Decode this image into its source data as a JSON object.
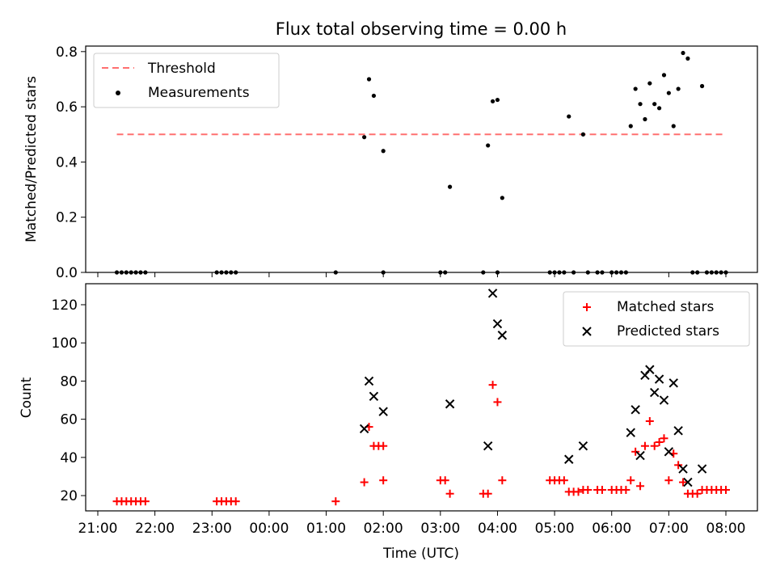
{
  "chart_data": [
    {
      "type": "scatter",
      "title": "Flux total observing time = 0.00 h",
      "xlabel": "",
      "ylabel": "Matched/Predicted stars",
      "xlim": [
        "21:00",
        "08:00"
      ],
      "ylim": [
        0,
        0.82
      ],
      "yticks": [
        "0.0",
        "0.2",
        "0.4",
        "0.6",
        "0.8"
      ],
      "legend_position": "upper-left",
      "threshold": {
        "name": "Threshold",
        "value": 0.5,
        "x_range": [
          "21:20",
          "08:00"
        ],
        "color": "#ff7070",
        "style": "dashed"
      },
      "series": [
        {
          "name": "Measurements",
          "color": "#000000",
          "marker": "dot",
          "points": [
            [
              "21:20",
              0
            ],
            [
              "21:25",
              0
            ],
            [
              "21:30",
              0
            ],
            [
              "21:35",
              0
            ],
            [
              "21:40",
              0
            ],
            [
              "21:45",
              0
            ],
            [
              "21:50",
              0
            ],
            [
              "23:05",
              0
            ],
            [
              "23:10",
              0
            ],
            [
              "23:15",
              0
            ],
            [
              "23:20",
              0
            ],
            [
              "23:25",
              0
            ],
            [
              "01:10",
              0
            ],
            [
              "01:40",
              0.49
            ],
            [
              "01:45",
              0.7
            ],
            [
              "01:50",
              0.64
            ],
            [
              "02:00",
              0.44
            ],
            [
              "02:00",
              0
            ],
            [
              "03:00",
              0
            ],
            [
              "03:05",
              0
            ],
            [
              "03:10",
              0.31
            ],
            [
              "03:45",
              0
            ],
            [
              "03:50",
              0.46
            ],
            [
              "03:55",
              0.62
            ],
            [
              "04:00",
              0.625
            ],
            [
              "04:00",
              0
            ],
            [
              "04:05",
              0.27
            ],
            [
              "04:55",
              0
            ],
            [
              "05:00",
              0
            ],
            [
              "05:05",
              0
            ],
            [
              "05:10",
              0
            ],
            [
              "05:15",
              0.565
            ],
            [
              "05:20",
              0
            ],
            [
              "05:30",
              0.5
            ],
            [
              "05:35",
              0
            ],
            [
              "05:45",
              0
            ],
            [
              "05:50",
              0
            ],
            [
              "06:00",
              0
            ],
            [
              "06:05",
              0
            ],
            [
              "06:10",
              0
            ],
            [
              "06:15",
              0
            ],
            [
              "06:20",
              0.53
            ],
            [
              "06:25",
              0.665
            ],
            [
              "06:30",
              0.61
            ],
            [
              "06:35",
              0.555
            ],
            [
              "06:40",
              0.685
            ],
            [
              "06:45",
              0.61
            ],
            [
              "06:50",
              0.595
            ],
            [
              "06:55",
              0.715
            ],
            [
              "07:00",
              0.65
            ],
            [
              "07:05",
              0.53
            ],
            [
              "07:10",
              0.665
            ],
            [
              "07:15",
              0.795
            ],
            [
              "07:20",
              0.775
            ],
            [
              "07:25",
              0
            ],
            [
              "07:30",
              0
            ],
            [
              "07:35",
              0.675
            ],
            [
              "07:40",
              0
            ],
            [
              "07:45",
              0
            ],
            [
              "07:50",
              0
            ],
            [
              "07:55",
              0
            ],
            [
              "08:00",
              0
            ]
          ]
        }
      ]
    },
    {
      "type": "scatter",
      "title": "",
      "xlabel": "Time (UTC)",
      "ylabel": "Count",
      "xlim": [
        "21:00",
        "08:00"
      ],
      "xticks": [
        "21:00",
        "22:00",
        "23:00",
        "00:00",
        "01:00",
        "02:00",
        "03:00",
        "04:00",
        "05:00",
        "06:00",
        "07:00",
        "08:00"
      ],
      "ylim": [
        12,
        131
      ],
      "yticks": [
        "20",
        "40",
        "60",
        "80",
        "100",
        "120"
      ],
      "legend_position": "upper-right",
      "series": [
        {
          "name": "Matched stars",
          "color": "#ff0000",
          "marker": "plus",
          "points": [
            [
              "21:20",
              17
            ],
            [
              "21:25",
              17
            ],
            [
              "21:30",
              17
            ],
            [
              "21:35",
              17
            ],
            [
              "21:40",
              17
            ],
            [
              "21:45",
              17
            ],
            [
              "21:50",
              17
            ],
            [
              "23:05",
              17
            ],
            [
              "23:10",
              17
            ],
            [
              "23:15",
              17
            ],
            [
              "23:20",
              17
            ],
            [
              "23:25",
              17
            ],
            [
              "01:10",
              17
            ],
            [
              "01:40",
              27
            ],
            [
              "01:45",
              56
            ],
            [
              "01:50",
              46
            ],
            [
              "01:55",
              46
            ],
            [
              "02:00",
              28
            ],
            [
              "02:00",
              46
            ],
            [
              "03:00",
              28
            ],
            [
              "03:05",
              28
            ],
            [
              "03:10",
              21
            ],
            [
              "03:45",
              21
            ],
            [
              "03:50",
              21
            ],
            [
              "03:55",
              78
            ],
            [
              "04:00",
              69
            ],
            [
              "04:05",
              28
            ],
            [
              "04:55",
              28
            ],
            [
              "05:00",
              28
            ],
            [
              "05:05",
              28
            ],
            [
              "05:10",
              28
            ],
            [
              "05:15",
              22
            ],
            [
              "05:20",
              22
            ],
            [
              "05:25",
              22
            ],
            [
              "05:30",
              23
            ],
            [
              "05:35",
              23
            ],
            [
              "05:45",
              23
            ],
            [
              "05:50",
              23
            ],
            [
              "06:00",
              23
            ],
            [
              "06:05",
              23
            ],
            [
              "06:10",
              23
            ],
            [
              "06:15",
              23
            ],
            [
              "06:20",
              28
            ],
            [
              "06:25",
              43
            ],
            [
              "06:30",
              25
            ],
            [
              "06:35",
              46
            ],
            [
              "06:40",
              59
            ],
            [
              "06:45",
              46
            ],
            [
              "06:50",
              48
            ],
            [
              "06:55",
              50
            ],
            [
              "07:00",
              28
            ],
            [
              "07:05",
              42
            ],
            [
              "07:10",
              36
            ],
            [
              "07:15",
              27
            ],
            [
              "07:20",
              21
            ],
            [
              "07:25",
              21
            ],
            [
              "07:30",
              21
            ],
            [
              "07:35",
              23
            ],
            [
              "07:40",
              23
            ],
            [
              "07:45",
              23
            ],
            [
              "07:50",
              23
            ],
            [
              "07:55",
              23
            ],
            [
              "08:00",
              23
            ]
          ]
        },
        {
          "name": "Predicted stars",
          "color": "#000000",
          "marker": "x",
          "points": [
            [
              "01:40",
              55
            ],
            [
              "01:45",
              80
            ],
            [
              "01:50",
              72
            ],
            [
              "02:00",
              64
            ],
            [
              "03:10",
              68
            ],
            [
              "03:50",
              46
            ],
            [
              "03:55",
              126
            ],
            [
              "04:00",
              110
            ],
            [
              "04:05",
              104
            ],
            [
              "05:15",
              39
            ],
            [
              "05:30",
              46
            ],
            [
              "06:20",
              53
            ],
            [
              "06:25",
              65
            ],
            [
              "06:30",
              41
            ],
            [
              "06:35",
              83
            ],
            [
              "06:40",
              86
            ],
            [
              "06:45",
              74
            ],
            [
              "06:50",
              81
            ],
            [
              "06:55",
              70
            ],
            [
              "07:00",
              43
            ],
            [
              "07:05",
              79
            ],
            [
              "07:10",
              54
            ],
            [
              "07:15",
              34
            ],
            [
              "07:20",
              27
            ],
            [
              "07:35",
              34
            ]
          ]
        }
      ]
    }
  ]
}
